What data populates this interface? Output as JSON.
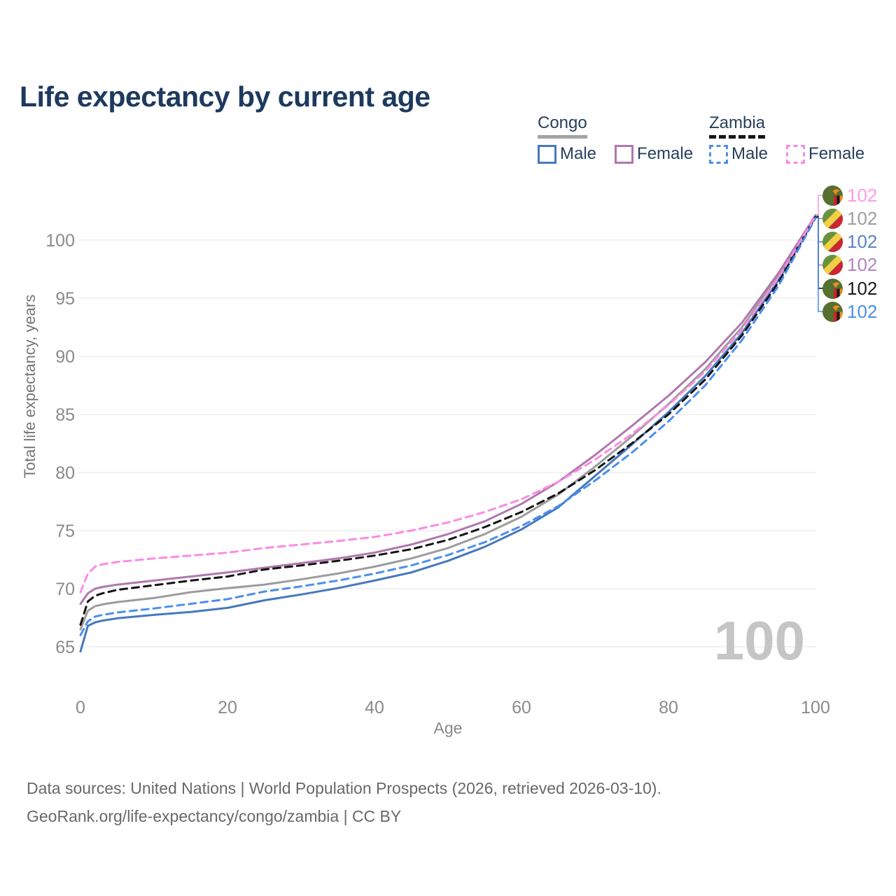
{
  "title": "Life expectancy by current age",
  "legend": {
    "groups": [
      {
        "label": "Congo",
        "line_style": "solid",
        "underline_color": "#a3a3a3",
        "items": [
          {
            "label": "Male",
            "color": "#4678bd"
          },
          {
            "label": "Female",
            "color": "#b078ad"
          }
        ]
      },
      {
        "label": "Zambia",
        "line_style": "dashed",
        "underline_color": "#161616",
        "items": [
          {
            "label": "Male",
            "color": "#4b8fee"
          },
          {
            "label": "Female",
            "color": "#fc8ae4"
          }
        ]
      }
    ]
  },
  "watermark": "100",
  "footer": {
    "line1": "Data sources: United Nations | World Population Prospects (2026, retrieved 2026-03-10).",
    "line2": "GeoRank.org/life-expectancy/congo/zambia | CC BY"
  },
  "chart_data": {
    "type": "line",
    "title": "Life expectancy by current age",
    "xlabel": "Age",
    "ylabel": "Total life expectancy, years",
    "xlim": [
      0,
      100
    ],
    "ylim": [
      63,
      103
    ],
    "xticks": [
      0,
      20,
      40,
      60,
      80,
      100
    ],
    "yticks": [
      65,
      70,
      75,
      80,
      85,
      90,
      95,
      100
    ],
    "grid": "horizontal-only",
    "grid_color": "#ebebeb",
    "x": [
      0,
      1,
      2,
      3,
      5,
      10,
      15,
      20,
      25,
      30,
      35,
      40,
      45,
      50,
      55,
      60,
      65,
      70,
      75,
      80,
      85,
      90,
      95,
      100
    ],
    "series": [
      {
        "name": "Congo",
        "country": "congo",
        "sex": "all",
        "color": "#9c9c9c",
        "dash": false,
        "values": [
          66.5,
          68.1,
          68.5,
          68.65,
          68.85,
          69.2,
          69.7,
          70.05,
          70.35,
          70.8,
          71.3,
          71.9,
          72.6,
          73.5,
          74.7,
          76.2,
          78.1,
          80.5,
          83.1,
          85.9,
          88.9,
          92.5,
          97.0,
          102.1
        ]
      },
      {
        "name": "Congo Male",
        "country": "congo",
        "sex": "male",
        "color": "#4678bd",
        "dash": false,
        "values": [
          64.6,
          66.8,
          67.1,
          67.25,
          67.45,
          67.75,
          68.0,
          68.35,
          69.0,
          69.5,
          70.05,
          70.7,
          71.4,
          72.4,
          73.6,
          75.1,
          77.0,
          79.7,
          82.4,
          85.2,
          88.3,
          92.0,
          96.6,
          102.0
        ]
      },
      {
        "name": "Congo Female",
        "country": "congo",
        "sex": "female",
        "color": "#b078ad",
        "dash": false,
        "values": [
          68.7,
          69.6,
          70.0,
          70.15,
          70.35,
          70.7,
          71.05,
          71.4,
          71.8,
          72.2,
          72.6,
          73.1,
          73.8,
          74.7,
          75.8,
          77.3,
          79.2,
          81.5,
          84.0,
          86.6,
          89.5,
          92.9,
          97.2,
          102.15
        ]
      },
      {
        "name": "Zambia",
        "country": "zambia",
        "sex": "all",
        "color": "#141414",
        "dash": true,
        "values": [
          66.9,
          68.9,
          69.4,
          69.6,
          69.9,
          70.3,
          70.7,
          71.05,
          71.65,
          72.0,
          72.4,
          72.85,
          73.4,
          74.2,
          75.3,
          76.6,
          78.2,
          80.2,
          82.5,
          85.0,
          88.0,
          91.8,
          96.4,
          102.0
        ]
      },
      {
        "name": "Zambia Male",
        "country": "zambia",
        "sex": "male",
        "color": "#4b8fee",
        "dash": true,
        "values": [
          66.0,
          67.2,
          67.6,
          67.75,
          67.95,
          68.3,
          68.7,
          69.1,
          69.75,
          70.2,
          70.7,
          71.3,
          72.0,
          72.9,
          74.0,
          75.4,
          77.1,
          79.3,
          81.7,
          84.4,
          87.5,
          91.4,
          96.1,
          101.9
        ]
      },
      {
        "name": "Zambia Female",
        "country": "zambia",
        "sex": "female",
        "color": "#fc8ae4",
        "dash": true,
        "values": [
          69.7,
          71.3,
          71.9,
          72.1,
          72.3,
          72.6,
          72.85,
          73.1,
          73.5,
          73.8,
          74.1,
          74.45,
          75.0,
          75.7,
          76.6,
          77.7,
          79.2,
          81.1,
          83.3,
          85.8,
          88.7,
          92.3,
          96.8,
          102.1
        ]
      }
    ],
    "end_labels": [
      {
        "value": "102",
        "series": "Zambia Female",
        "series_index": 5,
        "flag": "zambia",
        "flag_ref": "#flag-zambia",
        "color": "#fb9be8"
      },
      {
        "value": "102",
        "series": "Congo",
        "series_index": 0,
        "flag": "congo",
        "flag_ref": "#flag-congo",
        "color": "#9e9e9e"
      },
      {
        "value": "102",
        "series": "Congo Male",
        "series_index": 1,
        "flag": "congo",
        "flag_ref": "#flag-congo",
        "color": "#5b84c4"
      },
      {
        "value": "102",
        "series": "Congo Female",
        "series_index": 2,
        "flag": "congo",
        "flag_ref": "#flag-congo",
        "color": "#b585c0"
      },
      {
        "value": "102",
        "series": "Zambia",
        "series_index": 3,
        "flag": "zambia",
        "flag_ref": "#flag-zambia",
        "color": "#1a1a1a"
      },
      {
        "value": "102",
        "series": "Zambia Male",
        "series_index": 4,
        "flag": "zambia",
        "flag_ref": "#flag-zambia",
        "color": "#4a8fea"
      }
    ],
    "legend_position": "top-right"
  }
}
